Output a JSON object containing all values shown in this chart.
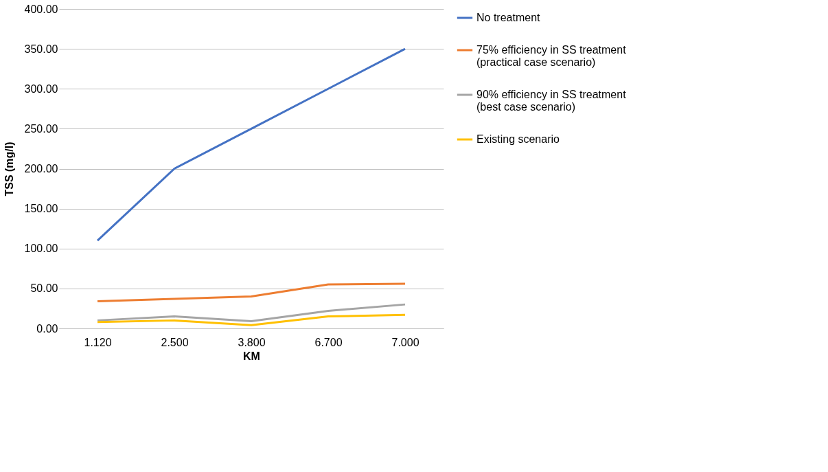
{
  "chart_data": {
    "type": "line",
    "xlabel": "KM",
    "ylabel": "TSS (mg/l)",
    "categories": [
      "1.120",
      "2.500",
      "3.800",
      "6.700",
      "7.000"
    ],
    "series": [
      {
        "name": "No treatment",
        "color": "#4472c4",
        "values": [
          110,
          200,
          250,
          300,
          350
        ]
      },
      {
        "name": "75% efficiency in SS treatment (practical case scenario)",
        "color": "#ed7d31",
        "values": [
          34,
          37,
          40,
          55,
          56
        ]
      },
      {
        "name": "90% efficiency in SS treatment (best case scenario)",
        "color": "#a5a5a5",
        "values": [
          10,
          15,
          9,
          22,
          30
        ]
      },
      {
        "name": "Existing scenario",
        "color": "#ffc000",
        "values": [
          8,
          10,
          4,
          15,
          17
        ]
      }
    ],
    "ylim": [
      0,
      400
    ],
    "yticks": [
      {
        "value": 0,
        "label": "0.00"
      },
      {
        "value": 50,
        "label": "50.00"
      },
      {
        "value": 100,
        "label": "100.00"
      },
      {
        "value": 150,
        "label": "150.00"
      },
      {
        "value": 200,
        "label": "200.00"
      },
      {
        "value": 250,
        "label": "250.00"
      },
      {
        "value": 300,
        "label": "300.00"
      },
      {
        "value": 350,
        "label": "350.00"
      },
      {
        "value": 400,
        "label": "400.00"
      }
    ],
    "grid": "y",
    "legend": "right",
    "marker": "none",
    "line_style": "solid"
  }
}
